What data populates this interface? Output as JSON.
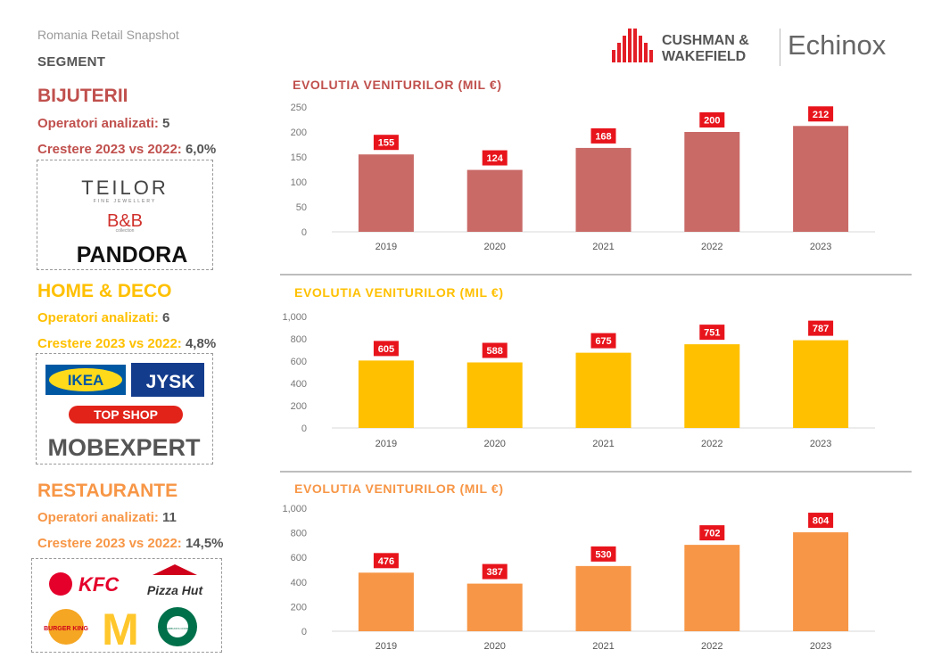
{
  "header": {
    "subtitle": "Romania Retail Snapshot",
    "segment_label": "SEGMENT",
    "logo_cw_line1": "CUSHMAN &",
    "logo_cw_line2": "WAKEFIELD",
    "logo_echinox": "Echinox"
  },
  "segments": [
    {
      "title": "BIJUTERII",
      "operators_label": "Operatori analizati:",
      "operators_value": "5",
      "growth_label": "Crestere 2023 vs 2022:",
      "growth_value": "6,0%",
      "color": "#c96a67",
      "brands": [
        "TEILOR",
        "FINE JEWELLERY",
        "B&B",
        "collection",
        "PANDORA"
      ]
    },
    {
      "title": "HOME & DECO",
      "operators_label": "Operatori analizati:",
      "operators_value": "6",
      "growth_label": "Crestere 2023 vs 2022:",
      "growth_value": "4,8%",
      "color": "#ffc000",
      "brands": [
        "IKEA",
        "JYSK",
        "TOP SHOP",
        "MOBEXPERT"
      ]
    },
    {
      "title": "RESTAURANTE",
      "operators_label": "Operatori analizati:",
      "operators_value": "11",
      "growth_label": "Crestere 2023 vs 2022:",
      "growth_value": "14,5%",
      "color": "#f79646",
      "brands": [
        "KFC",
        "Pizza Hut",
        "BURGER KING",
        "M",
        "STARBUCKS COFFEE"
      ]
    }
  ],
  "chart_data": [
    {
      "type": "bar",
      "title": "EVOLUTIA VENITURILOR (MIL €)",
      "categories": [
        "2019",
        "2020",
        "2021",
        "2022",
        "2023"
      ],
      "values": [
        155,
        124,
        168,
        200,
        212
      ],
      "data_labels": [
        "155",
        "124",
        "168",
        "200",
        "212"
      ],
      "ylim": [
        0,
        250
      ],
      "yticks": [
        "0",
        "50",
        "100",
        "150",
        "200",
        "250"
      ],
      "bar_color": "#c96a67",
      "title_color": "#c0504d",
      "label_bg": "#e8141c",
      "grid": false
    },
    {
      "type": "bar",
      "title": "EVOLUTIA VENITURILOR (MIL €)",
      "categories": [
        "2019",
        "2020",
        "2021",
        "2022",
        "2023"
      ],
      "values": [
        605,
        588,
        675,
        751,
        787
      ],
      "data_labels": [
        "605",
        "588",
        "675",
        "751",
        "787"
      ],
      "ylim": [
        0,
        1000
      ],
      "yticks": [
        "0",
        "200",
        "400",
        "600",
        "800",
        "1,000"
      ],
      "bar_color": "#ffc000",
      "title_color": "#ffc000",
      "label_bg": "#e8141c",
      "grid": false
    },
    {
      "type": "bar",
      "title": "EVOLUTIA VENITURILOR (MIL €)",
      "categories": [
        "2019",
        "2020",
        "2021",
        "2022",
        "2023"
      ],
      "values": [
        476,
        387,
        530,
        702,
        804
      ],
      "data_labels": [
        "476",
        "387",
        "530",
        "702",
        "804"
      ],
      "ylim": [
        0,
        1000
      ],
      "yticks": [
        "0",
        "200",
        "400",
        "600",
        "800",
        "1,000"
      ],
      "bar_color": "#f79646",
      "title_color": "#f79646",
      "label_bg": "#e8141c",
      "grid": false
    }
  ]
}
